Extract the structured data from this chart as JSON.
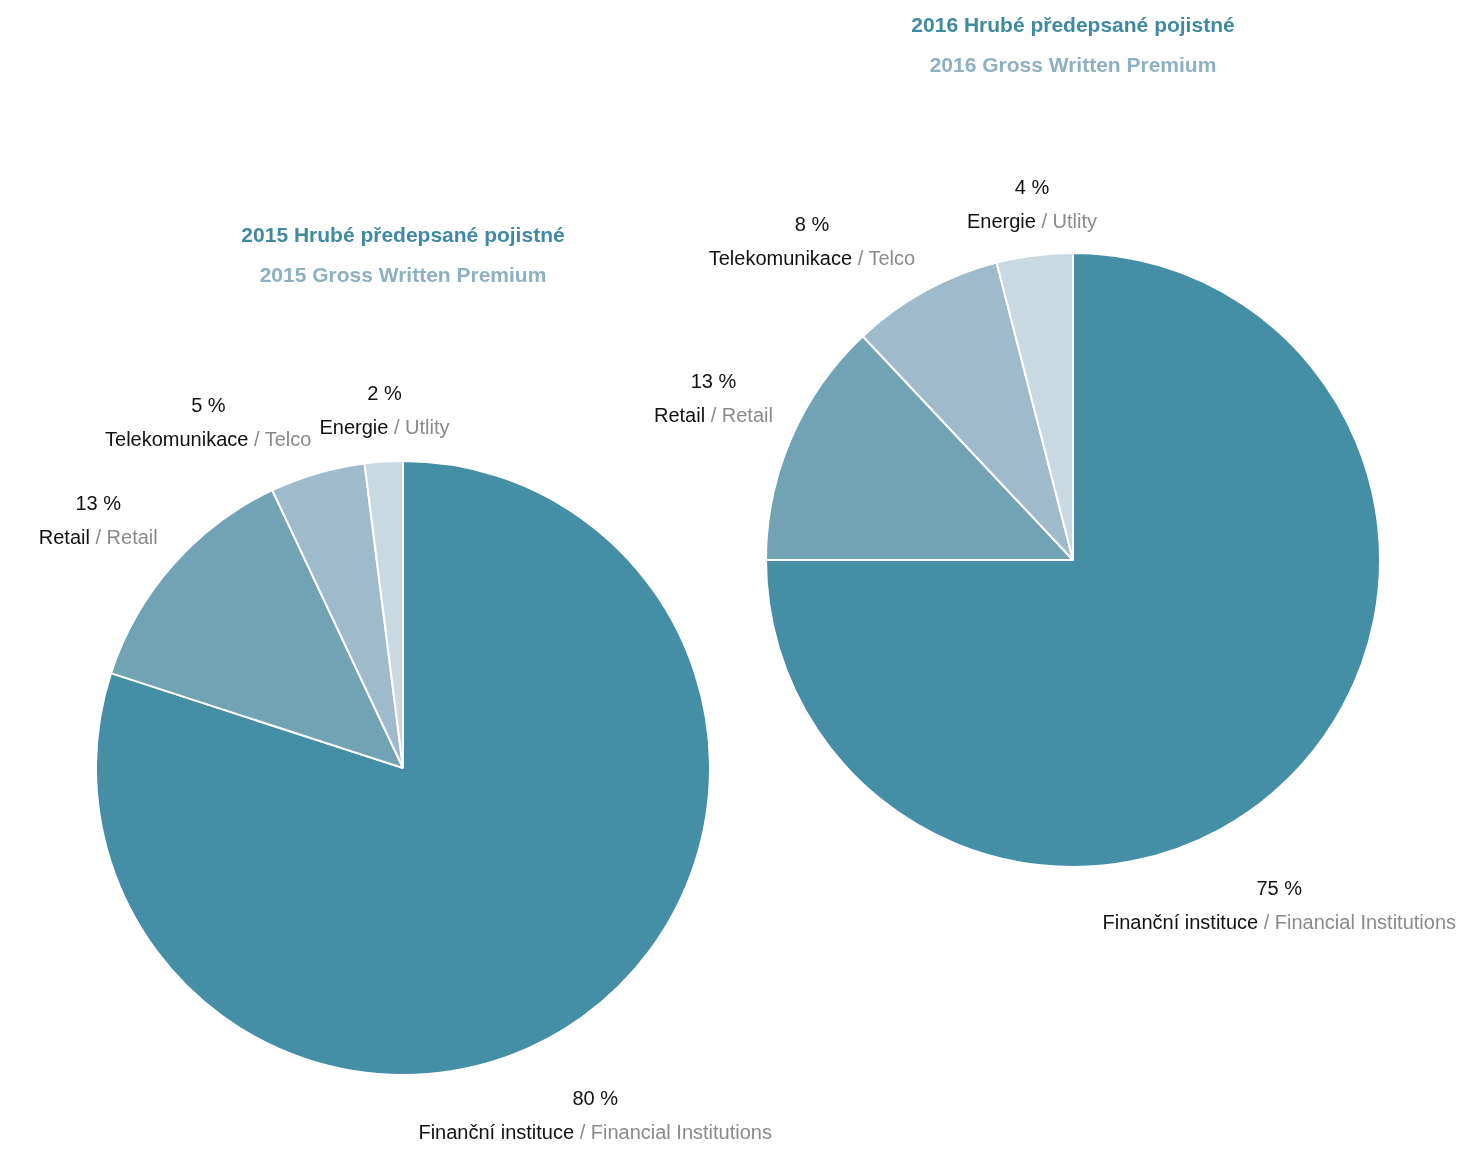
{
  "chart_data": [
    {
      "type": "pie",
      "title": "2015 Hrubé předepsané pojistné",
      "subtitle": "2015 Gross Written Premium",
      "categories": [
        "Finanční instituce / Financial Institutions",
        "Retail / Retail",
        "Telekomunikace / Telco",
        "Energie / Utlity"
      ],
      "values": [
        80,
        13,
        5,
        2
      ],
      "colors": [
        "#448ea6",
        "#72a3b5",
        "#9fbacb",
        "#c9d9e1"
      ],
      "value_labels": [
        "80 %",
        "13 %",
        "5 %",
        "2 %"
      ]
    },
    {
      "type": "pie",
      "title": "2016 Hrubé předepsané pojistné",
      "subtitle": "2016 Gross Written Premium",
      "categories": [
        "Finanční instituce / Financial Institutions",
        "Retail / Retail",
        "Telekomunikace / Telco",
        "Energie / Utlity"
      ],
      "values": [
        75,
        13,
        8,
        4
      ],
      "colors": [
        "#448ea6",
        "#72a3b5",
        "#9fbacb",
        "#c9d9e1"
      ],
      "value_labels": [
        "75 %",
        "13 %",
        "8 %",
        "4 %"
      ]
    }
  ]
}
